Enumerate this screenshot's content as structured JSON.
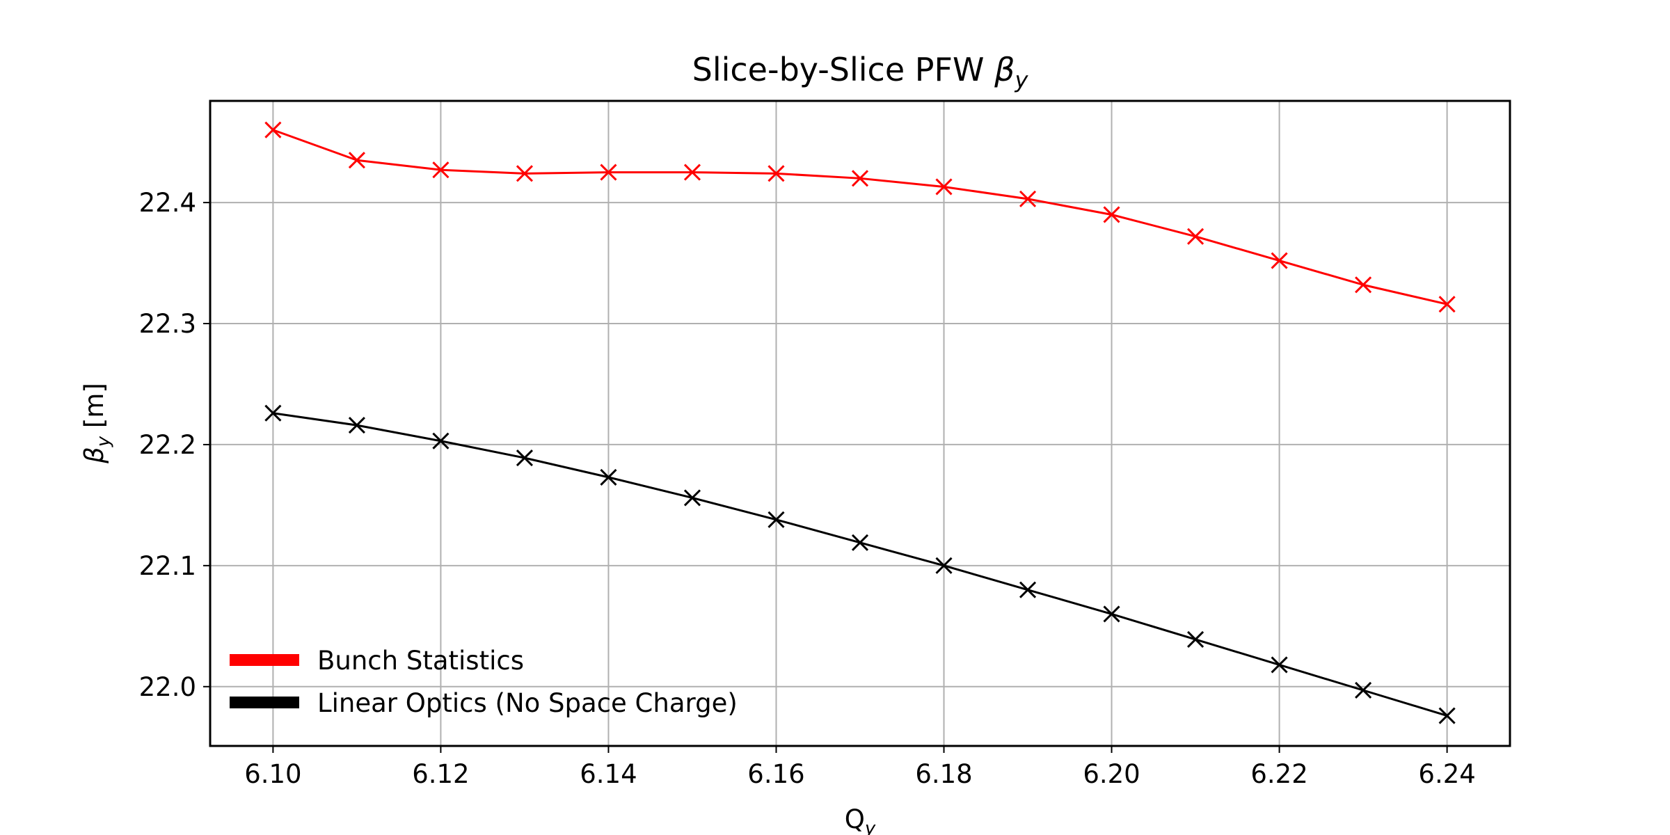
{
  "chart_data": {
    "type": "line",
    "title": "Slice-by-Slice PFW ",
    "title_symbol": "β",
    "title_sub": "y",
    "xlabel": "Q",
    "xlabel_sub": "y",
    "ylabel": " [m]",
    "ylabel_symbol": "β",
    "ylabel_sub": "y",
    "xlim": [
      6.0925,
      6.2475
    ],
    "ylim": [
      21.951,
      22.484
    ],
    "xticks": [
      "6.10",
      "6.12",
      "6.14",
      "6.16",
      "6.18",
      "6.20",
      "6.22",
      "6.24"
    ],
    "yticks": [
      "22.0",
      "22.1",
      "22.2",
      "22.3",
      "22.4"
    ],
    "grid": true,
    "legend_position": "lower-left",
    "x": [
      6.1,
      6.11,
      6.12,
      6.13,
      6.14,
      6.15,
      6.16,
      6.17,
      6.18,
      6.19,
      6.2,
      6.21,
      6.22,
      6.23,
      6.24
    ],
    "series": [
      {
        "name": "Bunch Statistics",
        "color": "#ff0000",
        "marker": "x",
        "values": [
          22.46,
          22.435,
          22.427,
          22.424,
          22.425,
          22.425,
          22.424,
          22.42,
          22.413,
          22.403,
          22.39,
          22.372,
          22.352,
          22.332,
          22.316
        ]
      },
      {
        "name": "Linear Optics (No Space Charge)",
        "color": "#000000",
        "marker": "x",
        "values": [
          22.226,
          22.216,
          22.203,
          22.189,
          22.173,
          22.156,
          22.138,
          22.119,
          22.1,
          22.08,
          22.06,
          22.039,
          22.018,
          21.997,
          21.976
        ]
      }
    ]
  }
}
